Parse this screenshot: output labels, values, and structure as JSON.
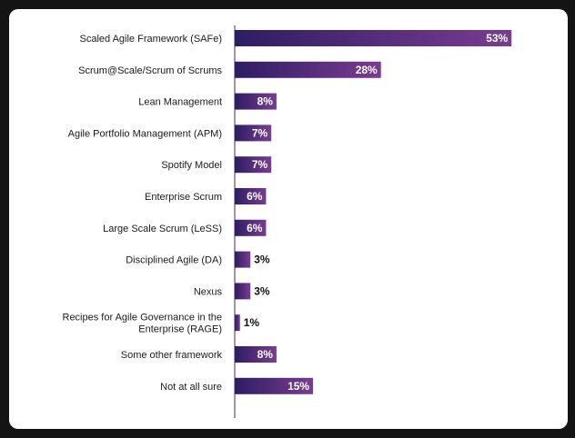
{
  "chart_data": {
    "type": "bar",
    "orientation": "horizontal",
    "categories": [
      [
        "Scaled Agile Framework (SAFe)"
      ],
      [
        "Scrum@Scale/Scrum of Scrums"
      ],
      [
        "Lean Management"
      ],
      [
        "Agile Portfolio Management (APM)"
      ],
      [
        "Spotify Model"
      ],
      [
        "Enterprise Scrum"
      ],
      [
        "Large Scale Scrum (LeSS)"
      ],
      [
        "Disciplined Agile (DA)"
      ],
      [
        "Nexus"
      ],
      [
        "Recipes for Agile Governance in the",
        "Enterprise (RAGE)"
      ],
      [
        "Some other framework"
      ],
      [
        "Not at all sure"
      ]
    ],
    "values": [
      53,
      28,
      8,
      7,
      7,
      6,
      6,
      3,
      3,
      1,
      8,
      15
    ],
    "value_labels": [
      "53%",
      "28%",
      "8%",
      "7%",
      "7%",
      "6%",
      "6%",
      "3%",
      "3%",
      "1%",
      "8%",
      "15%"
    ],
    "unit": "%",
    "xlim": [
      0,
      60
    ],
    "colors": {
      "bar_start": "#2e1d63",
      "bar_end": "#7a3c90",
      "axis": "#6a4a8a",
      "label": "#1a1a1a"
    }
  }
}
